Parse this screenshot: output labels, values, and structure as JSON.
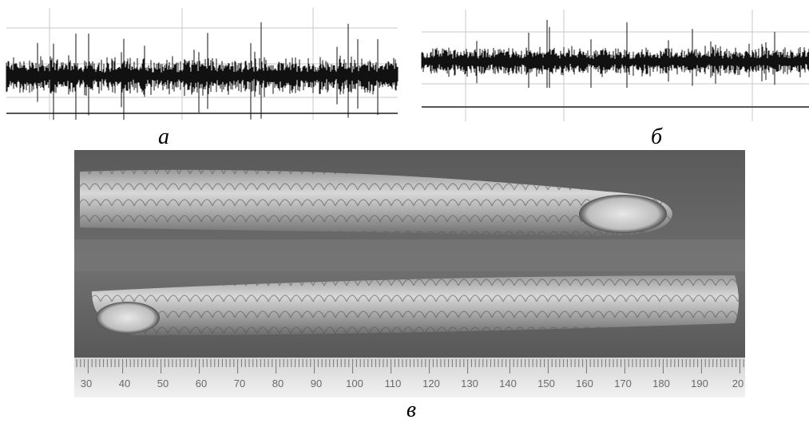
{
  "figure": {
    "panels": [
      {
        "label": "а"
      },
      {
        "label": "б"
      },
      {
        "label": "в",
        "ruler_labels": [
          "30",
          "40",
          "50",
          "60",
          "70",
          "80",
          "90",
          "100",
          "110",
          "120",
          "130",
          "140",
          "150",
          "160",
          "170",
          "180",
          "190",
          "20"
        ]
      }
    ]
  }
}
